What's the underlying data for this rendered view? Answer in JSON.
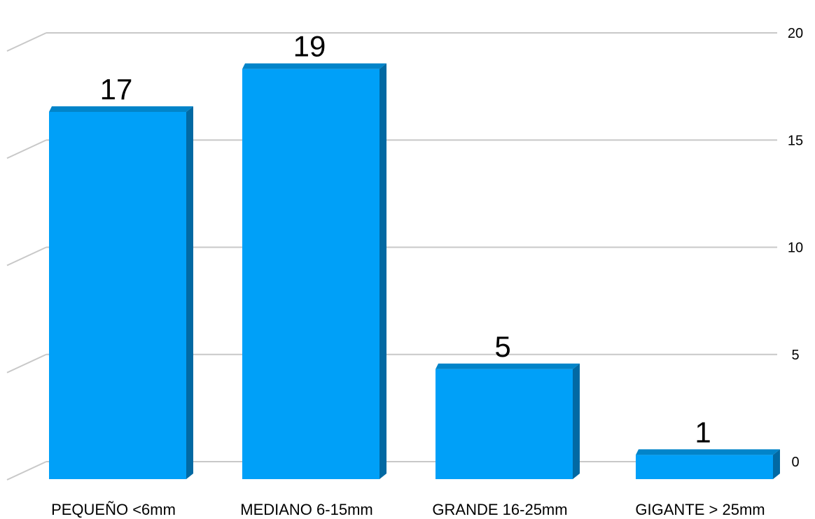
{
  "chart_data": {
    "type": "bar",
    "categories": [
      "PEQUEÑO <6mm",
      "MEDIANO 6-15mm",
      "GRANDE 16-25mm",
      "GIGANTE > 25mm"
    ],
    "values": [
      17,
      19,
      5,
      1
    ],
    "data_labels": [
      "17",
      "19",
      "5",
      "1"
    ],
    "ylim": [
      0,
      20
    ],
    "yticks": [
      0,
      5,
      10,
      15,
      20
    ],
    "title": "",
    "xlabel": "",
    "ylabel": "",
    "grid": true,
    "y_axis_position": "right",
    "style": "3d-column",
    "colors": {
      "bar_front": "#00a0f8",
      "bar_side": "#0269a3",
      "bar_top": "#0284c9",
      "grid": "#c8c8c8"
    }
  }
}
